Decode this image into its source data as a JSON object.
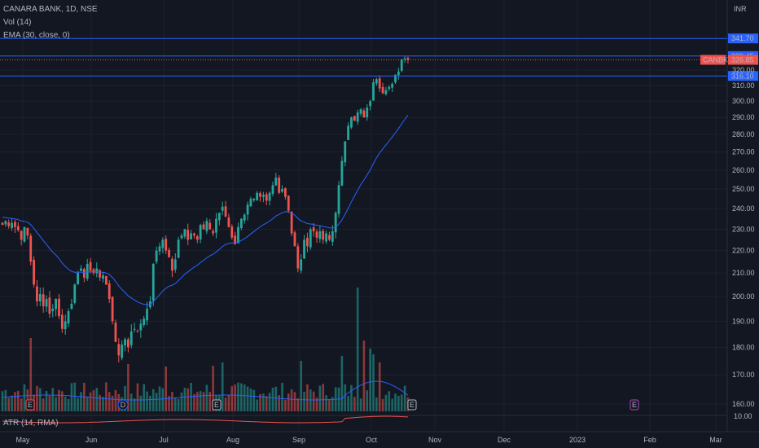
{
  "legend": {
    "symbol_line": "CANARA BANK, 1D, NSE",
    "volume_line": "Vol (14)",
    "ema_line": "EMA (30, close, 0)",
    "atr_line": "ATR (14, RMA)"
  },
  "axis": {
    "currency": "INR",
    "ticks": [
      "160.00",
      "170.00",
      "180.00",
      "190.00",
      "200.00",
      "210.00",
      "220.00",
      "230.00",
      "240.00",
      "250.00",
      "260.00",
      "270.00",
      "280.00",
      "290.00",
      "300.00",
      "310.00",
      "320.00"
    ],
    "atr_tick": "10.00",
    "months": [
      "May",
      "Jun",
      "Jul",
      "Aug",
      "Sep",
      "Oct",
      "Nov",
      "Dec",
      "2023",
      "Feb",
      "Mar"
    ]
  },
  "lines": [
    {
      "label": "341.70",
      "value": 341.7
    },
    {
      "label": "329.45",
      "value": 329.45
    },
    {
      "label": "316.10",
      "value": 316.1
    }
  ],
  "last_price": {
    "ticker": "CANBK",
    "label": "326.85",
    "value": 326.85
  },
  "event_markers": [
    "E",
    "D",
    "E",
    "E",
    "E"
  ],
  "colors": {
    "background": "#131722",
    "up": "#26a69a",
    "down": "#ef5350",
    "ema": "#2962ff",
    "hline": "#2962ff",
    "atr": "#ef5350",
    "grid": "#1e222d"
  },
  "chart_data": {
    "type": "candlestick",
    "title": "CANARA BANK, 1D, NSE",
    "ylim": [
      155,
      345
    ],
    "yscale": "log",
    "grid": true,
    "period_start": "2022-04-25",
    "period_end": "2022-11-28",
    "horizontal_lines": [
      341.7,
      329.45,
      316.1
    ],
    "ohlc_close_series": [
      232.0,
      234.0,
      231.5,
      233.0,
      231.0,
      229.5,
      225.0,
      231.0,
      227.0,
      215.0,
      205.0,
      198.0,
      201.0,
      196.0,
      199.0,
      193.0,
      195.0,
      199.0,
      192.0,
      187.0,
      190.0,
      194.0,
      197.0,
      205.0,
      210.0,
      212.0,
      208.0,
      214.0,
      211.0,
      210.0,
      212.0,
      208.0,
      209.0,
      205.0,
      199.0,
      190.0,
      182.0,
      177.0,
      181.0,
      183.0,
      180.0,
      186.0,
      187.0,
      186.0,
      189.0,
      191.0,
      195.0,
      198.0,
      214.0,
      220.0,
      222.0,
      225.0,
      220.0,
      217.0,
      211.0,
      216.0,
      225.0,
      227.0,
      230.0,
      225.0,
      228.0,
      227.0,
      225.0,
      232.0,
      230.0,
      234.0,
      230.0,
      228.0,
      235.0,
      238.0,
      241.0,
      236.0,
      231.0,
      226.0,
      223.0,
      231.0,
      235.0,
      237.0,
      242.0,
      245.0,
      245.0,
      248.0,
      246.0,
      247.0,
      244.0,
      248.0,
      252.0,
      256.0,
      248.0,
      250.0,
      246.0,
      239.0,
      228.0,
      222.0,
      212.0,
      216.0,
      225.0,
      222.0,
      230.0,
      229.0,
      226.0,
      229.0,
      225.0,
      228.0,
      225.0,
      229.0,
      238.0,
      252.0,
      265.0,
      276.0,
      285.0,
      290.0,
      288.0,
      293.0,
      295.0,
      290.0,
      296.0,
      300.0,
      312.0,
      314.0,
      308.0,
      305.0,
      307.0,
      309.0,
      311.0,
      317.0,
      319.0,
      327.0,
      328.0,
      326.85
    ],
    "ema": {
      "name": "EMA (30, close, 0)",
      "period": 30
    },
    "volume": {
      "name": "Vol (14)"
    },
    "atr": {
      "name": "ATR (14, RMA)",
      "tick": 10.0
    }
  }
}
